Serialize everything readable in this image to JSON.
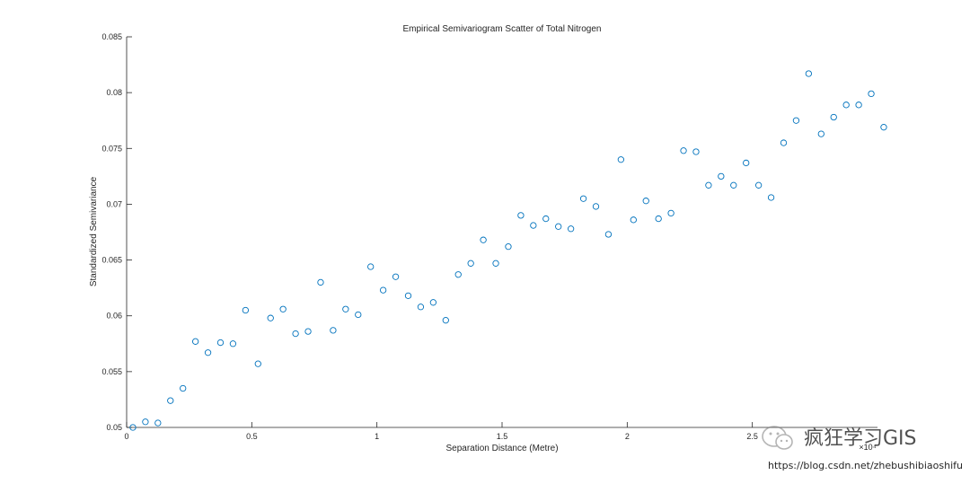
{
  "chart_data": {
    "type": "scatter",
    "title": "Empirical Semivariogram Scatter of Total Nitrogen",
    "xlabel": "Separation Distance (Metre)",
    "ylabel": "Standardized Semivariance",
    "xlim": [
      0,
      30000
    ],
    "ylim": [
      0.05,
      0.085
    ],
    "x_tick_labels": [
      "0",
      "0.5",
      "1",
      "1.5",
      "2",
      "2.5"
    ],
    "x_tick_values": [
      0,
      5000,
      10000,
      15000,
      20000,
      25000
    ],
    "x_exponent_label": "×10⁴",
    "y_tick_labels": [
      "0.05",
      "0.055",
      "0.06",
      "0.065",
      "0.07",
      "0.075",
      "0.08",
      "0.085"
    ],
    "y_tick_values": [
      0.05,
      0.055,
      0.06,
      0.065,
      0.07,
      0.075,
      0.08,
      0.085
    ],
    "grid": false,
    "marker": "open-circle",
    "marker_color": "#0072bd",
    "series": [
      {
        "x": [
          250,
          750,
          1250,
          1750,
          2250,
          2750,
          3250,
          3750,
          4250,
          4750,
          5250,
          5750,
          6250,
          6750,
          7250,
          7750,
          8250,
          8750,
          9250,
          9750,
          10250,
          10750,
          11250,
          11750,
          12250,
          12750,
          13250,
          13750,
          14250,
          14750,
          15250,
          15750,
          16250,
          16750,
          17250,
          17750,
          18250,
          18750,
          19250,
          19750,
          20250,
          20750,
          21250,
          21750,
          22250,
          22750,
          23250,
          23750,
          24250,
          24750,
          25250,
          25750,
          26250,
          26750,
          27250,
          27750,
          28250,
          28750,
          29250,
          29750,
          30250
        ],
        "y": [
          0.05,
          0.0505,
          0.0504,
          0.0524,
          0.0535,
          0.0577,
          0.0567,
          0.0576,
          0.0575,
          0.0605,
          0.0557,
          0.0598,
          0.0606,
          0.0584,
          0.0586,
          0.063,
          0.0587,
          0.0606,
          0.0601,
          0.0644,
          0.0623,
          0.0635,
          0.0618,
          0.0608,
          0.0612,
          0.0596,
          0.0637,
          0.0647,
          0.0668,
          0.0647,
          0.0662,
          0.069,
          0.0681,
          0.0687,
          0.068,
          0.0678,
          0.0705,
          0.0698,
          0.0673,
          0.074,
          0.0686,
          0.0703,
          0.0687,
          0.0692,
          0.0748,
          0.0747,
          0.0717,
          0.0725,
          0.0717,
          0.0737,
          0.0717,
          0.0706,
          0.0755,
          0.0775,
          0.0817,
          0.0763,
          0.0778,
          0.0789,
          0.0789,
          0.0799,
          0.0769
        ]
      }
    ]
  },
  "watermark": {
    "account_name": "疯狂学习GIS",
    "url": "https://blog.csdn.net/zhebushibiaoshifu"
  }
}
